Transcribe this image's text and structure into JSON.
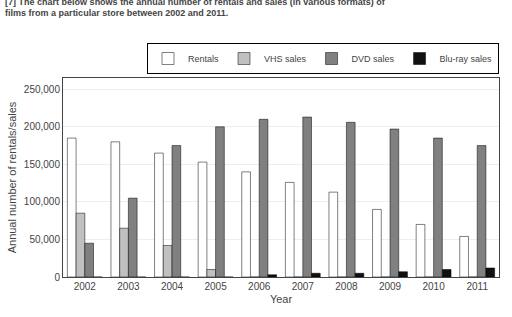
{
  "chart_data": {
    "type": "bar",
    "title": "[7] The chart below shows the annual number of rentals and sales (in various formats) of",
    "subtitle": "films from a particular store between 2002 and 2011.",
    "x_label": "Year",
    "y_label": "Annual number of rentals/sales",
    "categories": [
      "2002",
      "2003",
      "2004",
      "2005",
      "2006",
      "2007",
      "2008",
      "2009",
      "2010",
      "2011"
    ],
    "series": [
      {
        "name": "Rentals",
        "color": "#ffffff",
        "values": [
          185000,
          180000,
          165000,
          153000,
          140000,
          126000,
          113000,
          90000,
          70000,
          54000
        ]
      },
      {
        "name": "VHS sales",
        "color": "#c0c0c0",
        "values": [
          85000,
          65000,
          42000,
          10000,
          0,
          0,
          0,
          0,
          0,
          0
        ]
      },
      {
        "name": "DVD sales",
        "color": "#808080",
        "values": [
          45000,
          105000,
          175000,
          200000,
          210000,
          213000,
          206000,
          197000,
          185000,
          175000
        ]
      },
      {
        "name": "Blu-ray sales",
        "color": "#111111",
        "values": [
          0,
          0,
          0,
          0,
          3000,
          5000,
          5000,
          7000,
          10000,
          12000
        ]
      }
    ],
    "ylim": [
      0,
      265000
    ],
    "yticks": [
      0,
      {
        "value": 50000,
        "label": "50,000"
      },
      {
        "value": 100000,
        "label": "100,000"
      },
      {
        "value": 150000,
        "label": "150,000"
      },
      {
        "value": 200000,
        "label": "200,000"
      },
      {
        "value": 250000,
        "label": "250,000"
      }
    ],
    "grid": true,
    "legend": "upper right"
  }
}
